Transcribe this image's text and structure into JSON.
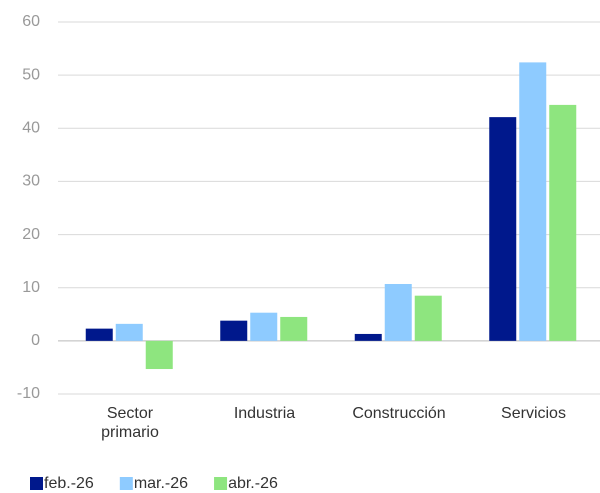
{
  "chart_data": {
    "type": "bar",
    "categories": [
      "Sector primario",
      "Industria",
      "Construcción",
      "Servicios"
    ],
    "series": [
      {
        "name": "feb.-26",
        "color": "#00188c",
        "values": [
          2.3,
          3.8,
          1.3,
          42.1
        ]
      },
      {
        "name": "mar.-26",
        "color": "#8ecbff",
        "values": [
          3.2,
          5.3,
          10.7,
          52.4
        ]
      },
      {
        "name": "abr.-26",
        "color": "#8ee57f",
        "values": [
          -5.3,
          4.5,
          8.5,
          44.4
        ]
      }
    ],
    "ylim": [
      -10,
      60
    ],
    "yticks": [
      -10,
      0,
      10,
      20,
      30,
      40,
      50,
      60
    ],
    "grid": true,
    "legend": "bottom"
  }
}
